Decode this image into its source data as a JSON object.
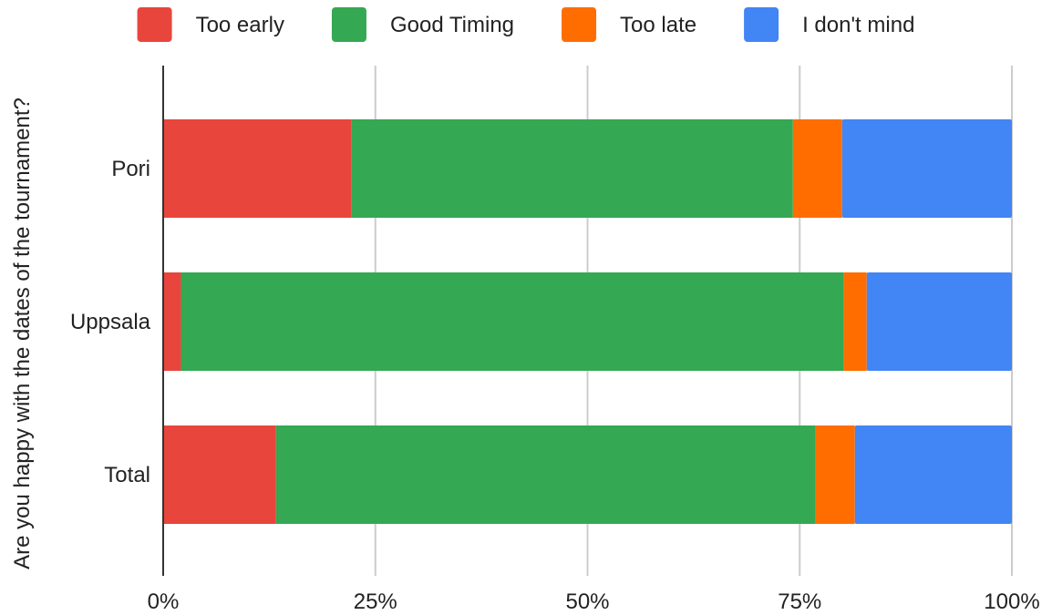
{
  "chart_data": {
    "type": "bar",
    "orientation": "horizontal",
    "stacked": "percent",
    "title": "",
    "xlabel": "",
    "ylabel": "Are you happy with the dates of the tournament?",
    "categories": [
      "Pori",
      "Uppsala",
      "Total"
    ],
    "series": [
      {
        "name": "Too early",
        "color": "#e8453c",
        "values": [
          22.2,
          2.1,
          13.3
        ]
      },
      {
        "name": "Good Timing",
        "color": "#34a853",
        "values": [
          52.0,
          78.1,
          63.5
        ]
      },
      {
        "name": "Too late",
        "color": "#ff6d00",
        "values": [
          5.8,
          2.7,
          4.7
        ]
      },
      {
        "name": "I don't mind",
        "color": "#4285f4",
        "values": [
          20.0,
          17.1,
          18.5
        ]
      }
    ],
    "xlim": [
      0,
      100
    ],
    "xticks": [
      "0%",
      "25%",
      "50%",
      "75%",
      "100%"
    ],
    "grid": "vertical",
    "legend_position": "top"
  }
}
